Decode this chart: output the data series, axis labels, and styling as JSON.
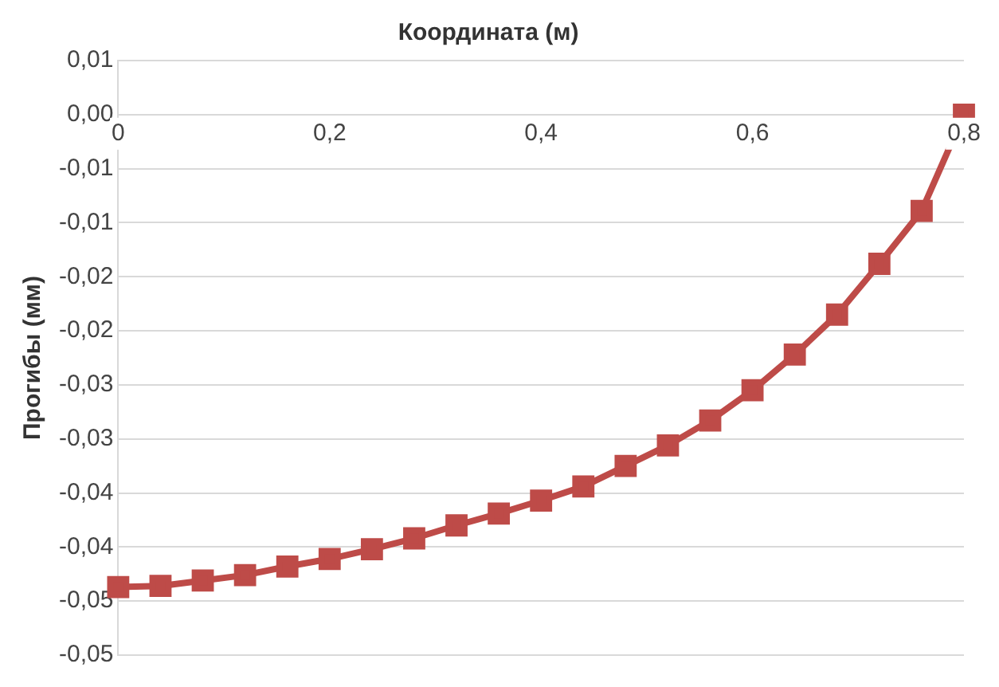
{
  "chart_data": {
    "type": "line",
    "xlabel": "Координата (м)",
    "ylabel": "Прогибы (мм)",
    "x": [
      0,
      0.04,
      0.08,
      0.12,
      0.16,
      0.2,
      0.24,
      0.28,
      0.32,
      0.36,
      0.4,
      0.44,
      0.48,
      0.52,
      0.56,
      0.6,
      0.64,
      0.68,
      0.72,
      0.76,
      0.8
    ],
    "series": [
      {
        "color": "#be4b48",
        "values": [
          -0.0437,
          -0.0436,
          -0.0431,
          -0.0426,
          -0.0418,
          -0.0411,
          -0.0402,
          -0.0392,
          -0.038,
          -0.0369,
          -0.0357,
          -0.0344,
          -0.0325,
          -0.0306,
          -0.0283,
          -0.0255,
          -0.0222,
          -0.0185,
          -0.0138,
          -0.0089,
          0
        ]
      }
    ],
    "xlim": [
      0,
      0.8
    ],
    "xticks": [
      {
        "value": 0,
        "label": "0"
      },
      {
        "value": 0.2,
        "label": "0,2"
      },
      {
        "value": 0.4,
        "label": "0,4"
      },
      {
        "value": 0.6,
        "label": "0,6"
      },
      {
        "value": 0.8,
        "label": "0,8"
      }
    ],
    "ylim": [
      -0.05,
      0.005
    ],
    "yticks": [
      {
        "value": 0.005,
        "label": "0,01"
      },
      {
        "value": 0,
        "label": "0,00"
      },
      {
        "value": -0.005,
        "label": "-0,01"
      },
      {
        "value": -0.01,
        "label": "-0,01"
      },
      {
        "value": -0.015,
        "label": "-0,02"
      },
      {
        "value": -0.02,
        "label": "-0,02"
      },
      {
        "value": -0.025,
        "label": "-0,03"
      },
      {
        "value": -0.03,
        "label": "-0,03"
      },
      {
        "value": -0.035,
        "label": "-0,04"
      },
      {
        "value": -0.04,
        "label": "-0,04"
      },
      {
        "value": -0.045,
        "label": "-0,05"
      },
      {
        "value": -0.05,
        "label": "-0,05"
      }
    ],
    "grid": "y",
    "legend": false,
    "marker": "square",
    "line_style": "solid"
  }
}
